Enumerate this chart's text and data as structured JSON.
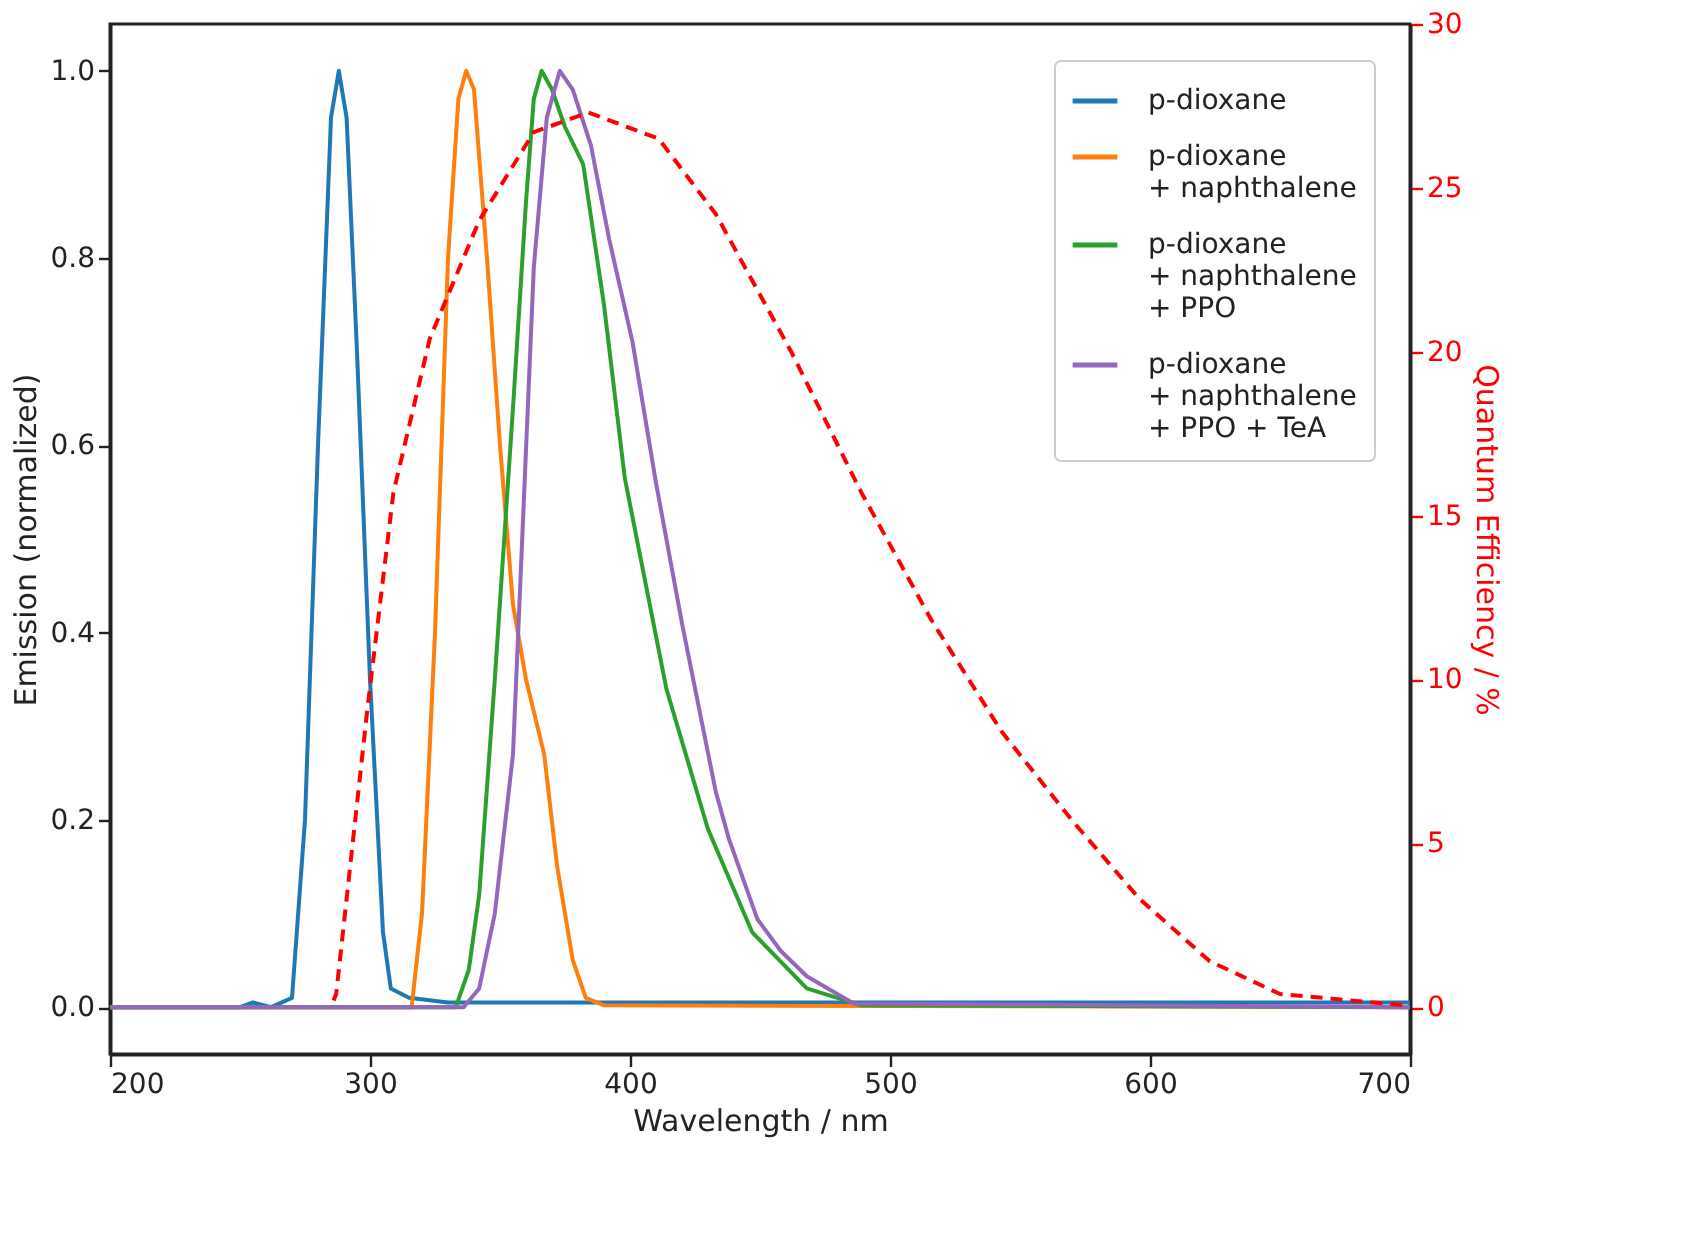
{
  "chart_data": {
    "type": "line",
    "xlabel": "Wavelength / nm",
    "ylabel": "Emission (normalized)",
    "y2label": "Quantum Efficiency / %",
    "xlim": [
      200,
      700
    ],
    "xticks": [
      200,
      300,
      400,
      500,
      600,
      700
    ],
    "ylim": [
      -0.05,
      1.05
    ],
    "yticks": [
      {
        "value": 0,
        "label": "0.0"
      },
      {
        "value": 0.2,
        "label": "0.2"
      },
      {
        "value": 0.4,
        "label": "0.4"
      },
      {
        "value": 0.6,
        "label": "0.6"
      },
      {
        "value": 0.8,
        "label": "0.8"
      },
      {
        "value": 1,
        "label": "1.0"
      }
    ],
    "y2lim": [
      -1.43,
      30
    ],
    "y2ticks": [
      0,
      5,
      10,
      15,
      20,
      25,
      30
    ],
    "grid": false,
    "legend": "top right",
    "marker": "none",
    "series": [
      {
        "name": "p-dioxane",
        "color": "#1f77b4",
        "line_style": "solid",
        "x": [
          200,
          250,
          255,
          262,
          270,
          275,
          280,
          285,
          288,
          291,
          295,
          300,
          305,
          308,
          315,
          330,
          700
        ],
        "values": [
          0,
          0,
          0.005,
          0,
          0.01,
          0.2,
          0.6,
          0.95,
          1.0,
          0.95,
          0.7,
          0.35,
          0.08,
          0.02,
          0.01,
          0.005,
          0.005
        ]
      },
      {
        "name": "p-dioxane\n+ naphthalene",
        "color": "#ff7f0e",
        "line_style": "solid",
        "x": [
          200,
          316,
          320,
          325,
          330,
          334,
          337,
          340,
          345,
          350,
          355,
          360,
          367,
          372,
          378,
          383,
          390,
          700
        ],
        "values": [
          0,
          0,
          0.1,
          0.4,
          0.8,
          0.97,
          1.0,
          0.98,
          0.8,
          0.6,
          0.43,
          0.35,
          0.27,
          0.15,
          0.05,
          0.01,
          0.002,
          0
        ]
      },
      {
        "name": "p-dioxane\n+ naphthalene\n+ PPO",
        "color": "#2ca02c",
        "line_style": "solid",
        "x": [
          200,
          333,
          338,
          342,
          348,
          355,
          360,
          363,
          366,
          370,
          375,
          382,
          390,
          398,
          414,
          430,
          447,
          468,
          489,
          700
        ],
        "values": [
          0,
          0,
          0.04,
          0.12,
          0.35,
          0.64,
          0.86,
          0.97,
          1.0,
          0.98,
          0.94,
          0.9,
          0.75,
          0.565,
          0.34,
          0.19,
          0.08,
          0.02,
          0.002,
          0
        ]
      },
      {
        "name": "p-dioxane\n+ naphthalene\n+ PPO + TeA",
        "color": "#9467bd",
        "line_style": "solid",
        "x": [
          200,
          336,
          342,
          348,
          355,
          363,
          368,
          373,
          378,
          385,
          392,
          401,
          410,
          420,
          433,
          438,
          449,
          458,
          468,
          486,
          700
        ],
        "values": [
          0,
          0,
          0.02,
          0.1,
          0.27,
          0.79,
          0.95,
          1.0,
          0.98,
          0.92,
          0.82,
          0.71,
          0.56,
          0.41,
          0.23,
          0.18,
          0.094,
          0.06,
          0.033,
          0.004,
          0
        ]
      },
      {
        "color": "#ff0000",
        "line_style": "dashed",
        "axis": "y2",
        "x": [
          286,
          287,
          299,
          309,
          323,
          342,
          363,
          384,
          411,
          433,
          462,
          489,
          516,
          543,
          570,
          596,
          623,
          650,
          692,
          700
        ],
        "values": [
          0.2,
          0.4,
          9.1,
          15.7,
          20.4,
          24.0,
          26.7,
          27.3,
          26.5,
          24.2,
          20.0,
          15.7,
          11.8,
          8.4,
          5.7,
          3.3,
          1.4,
          0.4,
          0.1,
          0.05
        ]
      }
    ]
  }
}
